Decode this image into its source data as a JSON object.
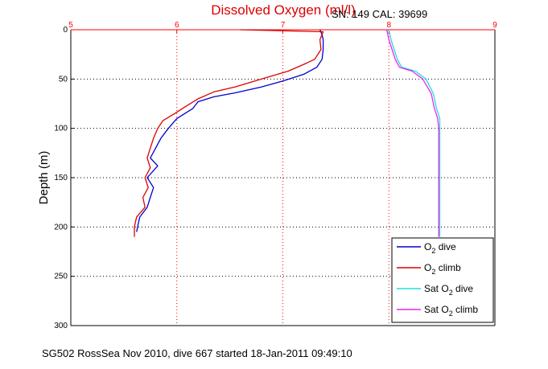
{
  "chart_data": {
    "type": "line",
    "title": "Dissolved Oxygen (ml/l)",
    "subtitle": "SN: 149  CAL: 39699",
    "xlabel": "",
    "ylabel": "Depth (m)",
    "xlim": [
      5,
      9
    ],
    "ylim": [
      300,
      0
    ],
    "x_ticks": [
      "5",
      "6",
      "7",
      "8",
      "9"
    ],
    "y_ticks": [
      "0",
      "50",
      "100",
      "150",
      "200",
      "250",
      "300"
    ],
    "grid": true,
    "legend_position": "bottom-right",
    "colors": {
      "o2_dive": "#0000cc",
      "o2_climb": "#dd0000",
      "sat_dive": "#22dddd",
      "sat_climb": "#ee22ee",
      "top_axis": "#ff0000",
      "grid_x": "#ff0000",
      "grid_y": "#000000"
    },
    "series": [
      {
        "key": "o2_dive",
        "name": "O2 dive",
        "legend_main": "O",
        "legend_sub": "2",
        "legend_rest": " dive",
        "points": [
          [
            7.35,
            0
          ],
          [
            7.37,
            5
          ],
          [
            7.38,
            10
          ],
          [
            7.38,
            20
          ],
          [
            7.37,
            30
          ],
          [
            7.32,
            38
          ],
          [
            7.2,
            45
          ],
          [
            7.0,
            52
          ],
          [
            6.8,
            58
          ],
          [
            6.55,
            64
          ],
          [
            6.35,
            68
          ],
          [
            6.2,
            73
          ],
          [
            6.15,
            80
          ],
          [
            6.0,
            90
          ],
          [
            5.92,
            100
          ],
          [
            5.85,
            110
          ],
          [
            5.8,
            120
          ],
          [
            5.75,
            130
          ],
          [
            5.82,
            138
          ],
          [
            5.72,
            150
          ],
          [
            5.78,
            160
          ],
          [
            5.75,
            170
          ],
          [
            5.72,
            180
          ],
          [
            5.65,
            190
          ],
          [
            5.63,
            200
          ],
          [
            5.62,
            205
          ]
        ]
      },
      {
        "key": "o2_climb",
        "name": "O2 climb",
        "legend_main": "O",
        "legend_sub": "2",
        "legend_rest": " climb",
        "points": [
          [
            6.6,
            0
          ],
          [
            7.38,
            2
          ],
          [
            7.35,
            10
          ],
          [
            7.36,
            20
          ],
          [
            7.3,
            30
          ],
          [
            7.2,
            35
          ],
          [
            7.05,
            42
          ],
          [
            6.8,
            50
          ],
          [
            6.55,
            58
          ],
          [
            6.35,
            63
          ],
          [
            6.2,
            70
          ],
          [
            6.08,
            78
          ],
          [
            5.98,
            85
          ],
          [
            5.87,
            92
          ],
          [
            5.82,
            100
          ],
          [
            5.78,
            110
          ],
          [
            5.75,
            120
          ],
          [
            5.72,
            130
          ],
          [
            5.75,
            140
          ],
          [
            5.7,
            150
          ],
          [
            5.73,
            160
          ],
          [
            5.68,
            170
          ],
          [
            5.7,
            180
          ],
          [
            5.62,
            190
          ],
          [
            5.6,
            200
          ],
          [
            5.6,
            210
          ]
        ]
      },
      {
        "key": "sat_dive",
        "name": "Sat O2 dive",
        "legend_main": "Sat O",
        "legend_sub": "2",
        "legend_rest": " dive",
        "points": [
          [
            8.0,
            0
          ],
          [
            8.02,
            10
          ],
          [
            8.05,
            20
          ],
          [
            8.08,
            30
          ],
          [
            8.12,
            38
          ],
          [
            8.25,
            42
          ],
          [
            8.35,
            50
          ],
          [
            8.42,
            65
          ],
          [
            8.45,
            80
          ],
          [
            8.48,
            90
          ],
          [
            8.48,
            100
          ],
          [
            8.48,
            120
          ],
          [
            8.48,
            150
          ],
          [
            8.48,
            180
          ],
          [
            8.48,
            210
          ]
        ]
      },
      {
        "key": "sat_climb",
        "name": "Sat O2 climb",
        "legend_main": "Sat O",
        "legend_sub": "2",
        "legend_rest": " climb",
        "points": [
          [
            7.98,
            0
          ],
          [
            8.0,
            10
          ],
          [
            8.03,
            20
          ],
          [
            8.06,
            30
          ],
          [
            8.1,
            38
          ],
          [
            8.22,
            42
          ],
          [
            8.32,
            50
          ],
          [
            8.4,
            65
          ],
          [
            8.43,
            80
          ],
          [
            8.46,
            90
          ],
          [
            8.47,
            100
          ],
          [
            8.47,
            120
          ],
          [
            8.47,
            150
          ],
          [
            8.47,
            180
          ],
          [
            8.47,
            210
          ]
        ]
      }
    ]
  },
  "footer": {
    "caption": "SG502 RossSea Nov 2010, dive 667 started 18-Jan-2011 09:49:10"
  }
}
